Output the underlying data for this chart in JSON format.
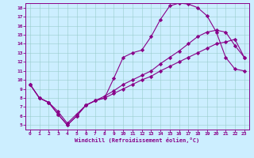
{
  "xlabel": "Windchill (Refroidissement éolien,°C)",
  "bg_color": "#cceeff",
  "line_color": "#880088",
  "xlim": [
    -0.5,
    23.5
  ],
  "ylim": [
    4.5,
    18.5
  ],
  "xticks": [
    0,
    1,
    2,
    3,
    4,
    5,
    6,
    7,
    8,
    9,
    10,
    11,
    12,
    13,
    14,
    15,
    16,
    17,
    18,
    19,
    20,
    21,
    22,
    23
  ],
  "yticks": [
    5,
    6,
    7,
    8,
    9,
    10,
    11,
    12,
    13,
    14,
    15,
    16,
    17,
    18
  ],
  "series1_x": [
    0,
    1,
    2,
    3,
    4,
    5,
    6,
    7,
    8,
    9,
    10,
    11,
    12,
    13,
    14,
    15,
    16,
    17,
    18,
    19,
    20,
    21,
    22,
    23
  ],
  "series1_y": [
    9.5,
    8.0,
    7.5,
    6.2,
    5.0,
    6.0,
    7.2,
    7.7,
    8.0,
    10.2,
    12.5,
    13.0,
    13.3,
    14.8,
    16.7,
    18.2,
    18.5,
    18.4,
    18.0,
    17.1,
    15.3,
    12.5,
    11.2,
    11.0
  ],
  "series2_x": [
    0,
    1,
    2,
    3,
    4,
    5,
    6,
    7,
    8,
    9,
    10,
    11,
    12,
    13,
    14,
    15,
    16,
    17,
    18,
    19,
    20,
    21,
    22,
    23
  ],
  "series2_y": [
    9.5,
    8.0,
    7.5,
    6.5,
    5.2,
    6.2,
    7.2,
    7.7,
    8.2,
    8.8,
    9.5,
    10.0,
    10.5,
    11.0,
    11.8,
    12.5,
    13.2,
    14.0,
    14.8,
    15.3,
    15.5,
    15.3,
    13.8,
    12.5
  ],
  "series3_x": [
    0,
    1,
    2,
    3,
    4,
    5,
    6,
    7,
    8,
    9,
    10,
    11,
    12,
    13,
    14,
    15,
    16,
    17,
    18,
    19,
    20,
    21,
    22,
    23
  ],
  "series3_y": [
    9.5,
    8.0,
    7.5,
    6.2,
    5.0,
    6.0,
    7.2,
    7.7,
    8.0,
    8.5,
    9.0,
    9.5,
    10.0,
    10.4,
    11.0,
    11.5,
    12.0,
    12.5,
    13.0,
    13.5,
    14.0,
    14.2,
    14.5,
    12.5
  ]
}
